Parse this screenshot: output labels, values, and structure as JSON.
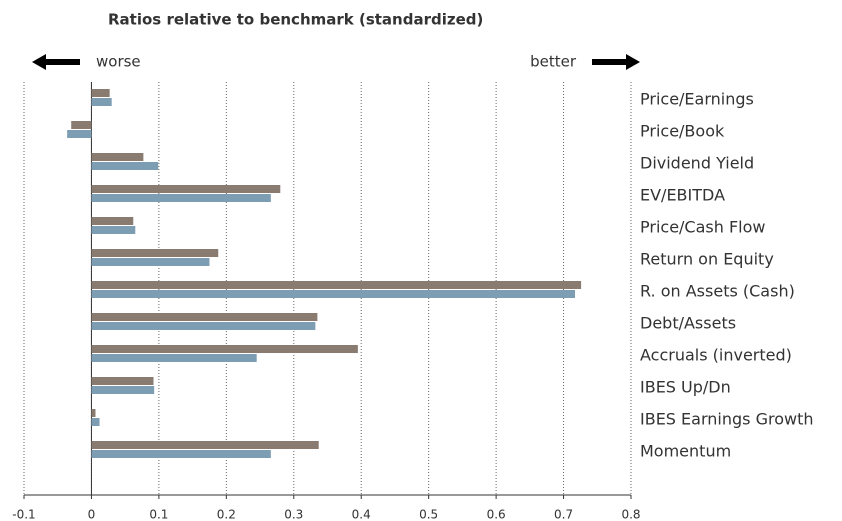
{
  "chart_data": {
    "type": "hbar",
    "title": "Ratios relative to benchmark (standardized)",
    "annotations": {
      "left": "worse",
      "right": "better"
    },
    "categories": [
      "Price/Earnings",
      "Price/Book",
      "Dividend Yield",
      "EV/EBITDA",
      "Price/Cash Flow",
      "Return on Equity",
      "R. on Assets (Cash)",
      "Debt/Assets",
      "Accruals (inverted)",
      "IBES Up/Dn",
      "IBES Earnings Growth",
      "Momentum"
    ],
    "series": [
      {
        "color": "#8a7b71",
        "values": [
          0.027,
          -0.03,
          0.077,
          0.28,
          0.062,
          0.188,
          0.726,
          0.335,
          0.395,
          0.092,
          0.006,
          0.337
        ]
      },
      {
        "color": "#7d9db3",
        "values": [
          0.03,
          -0.036,
          0.099,
          0.266,
          0.065,
          0.175,
          0.717,
          0.332,
          0.245,
          0.093,
          0.012,
          0.266
        ]
      }
    ],
    "xlim": [
      -0.1,
      0.8
    ],
    "xticks": [
      -0.1,
      0,
      0.1,
      0.2,
      0.3,
      0.4,
      0.5,
      0.6,
      0.7,
      0.8
    ],
    "grid": true
  }
}
